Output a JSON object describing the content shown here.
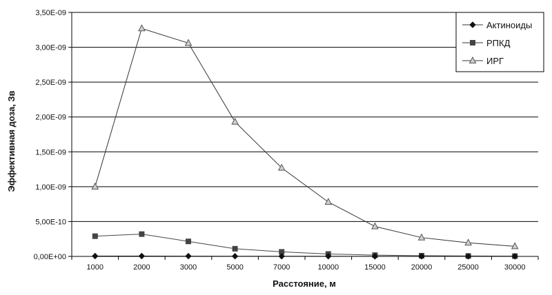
{
  "chart_data": {
    "type": "line",
    "xlabel": "Расстояние, м",
    "ylabel": "Эффективная доза, Зв",
    "categories": [
      "1000",
      "2000",
      "3000",
      "5000",
      "7000",
      "10000",
      "15000",
      "20000",
      "25000",
      "30000"
    ],
    "ylim": [
      0,
      3.5e-09
    ],
    "y_ticks": [
      "0,00E+00",
      "5,00E-10",
      "1,00E-09",
      "1,50E-09",
      "2,00E-09",
      "2,50E-09",
      "3,00E-09",
      "3,50E-09"
    ],
    "grid": "horizontal",
    "legend_position": "top-right",
    "series": [
      {
        "name": "Актиноиды",
        "marker": "diamond",
        "color": "#111111",
        "values": [
          5e-12,
          5e-12,
          4e-12,
          3e-12,
          2e-12,
          2e-12,
          1e-12,
          1e-12,
          1e-12,
          1e-12
        ]
      },
      {
        "name": "РПКД",
        "marker": "square",
        "color": "#444444",
        "values": [
          2.9e-10,
          3.2e-10,
          2.15e-10,
          1.1e-10,
          6.5e-11,
          3.5e-11,
          1.8e-11,
          1e-11,
          6e-12,
          4e-12
        ]
      },
      {
        "name": "ИРГ",
        "marker": "triangle",
        "color": "#999999",
        "values": [
          1e-09,
          3.27e-09,
          3.06e-09,
          1.93e-09,
          1.27e-09,
          7.8e-10,
          4.3e-10,
          2.7e-10,
          1.95e-10,
          1.45e-10
        ]
      }
    ]
  }
}
